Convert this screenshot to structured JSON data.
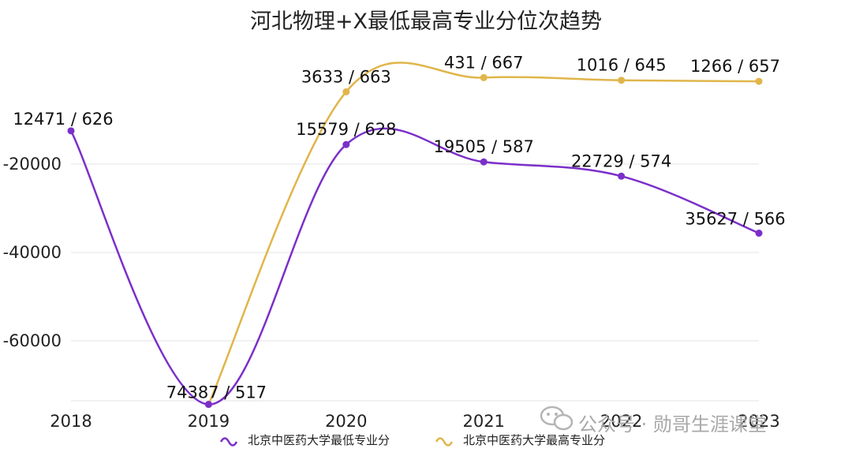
{
  "chart_data": {
    "type": "line",
    "title": "河北物理+X最低最高专业分位次趋势",
    "xlabel": "",
    "ylabel": "",
    "categories": [
      "2018",
      "2019",
      "2020",
      "2021",
      "2022",
      "2023"
    ],
    "ylim": [
      -75000,
      0
    ],
    "yticks": [
      "-20000",
      "-40000",
      "-60000"
    ],
    "grid": "horizontal",
    "smooth": true,
    "legend_position": "bottom",
    "series": [
      {
        "name": "北京中医药大学最低专业分",
        "color": "#7b2fc9",
        "values": [
          -12471,
          -74387,
          -15579,
          -19505,
          -22729,
          -35627
        ],
        "labels": [
          "12471 / 626",
          "74387 / 517",
          "15579 / 628",
          "19505 / 587",
          "22729 / 574",
          "35627 / 566"
        ]
      },
      {
        "name": "北京中医药大学最高专业分",
        "color": "#e0b54a",
        "values": [
          null,
          -74387,
          -3633,
          -431,
          -1016,
          -1266
        ],
        "labels": [
          "",
          "",
          "3633 / 663",
          "431 / 667",
          "1016 / 645",
          "1266 / 657"
        ]
      }
    ]
  },
  "watermark": {
    "icon": "wechat-icon",
    "text": "公众号 · 勋哥生涯课堂"
  }
}
